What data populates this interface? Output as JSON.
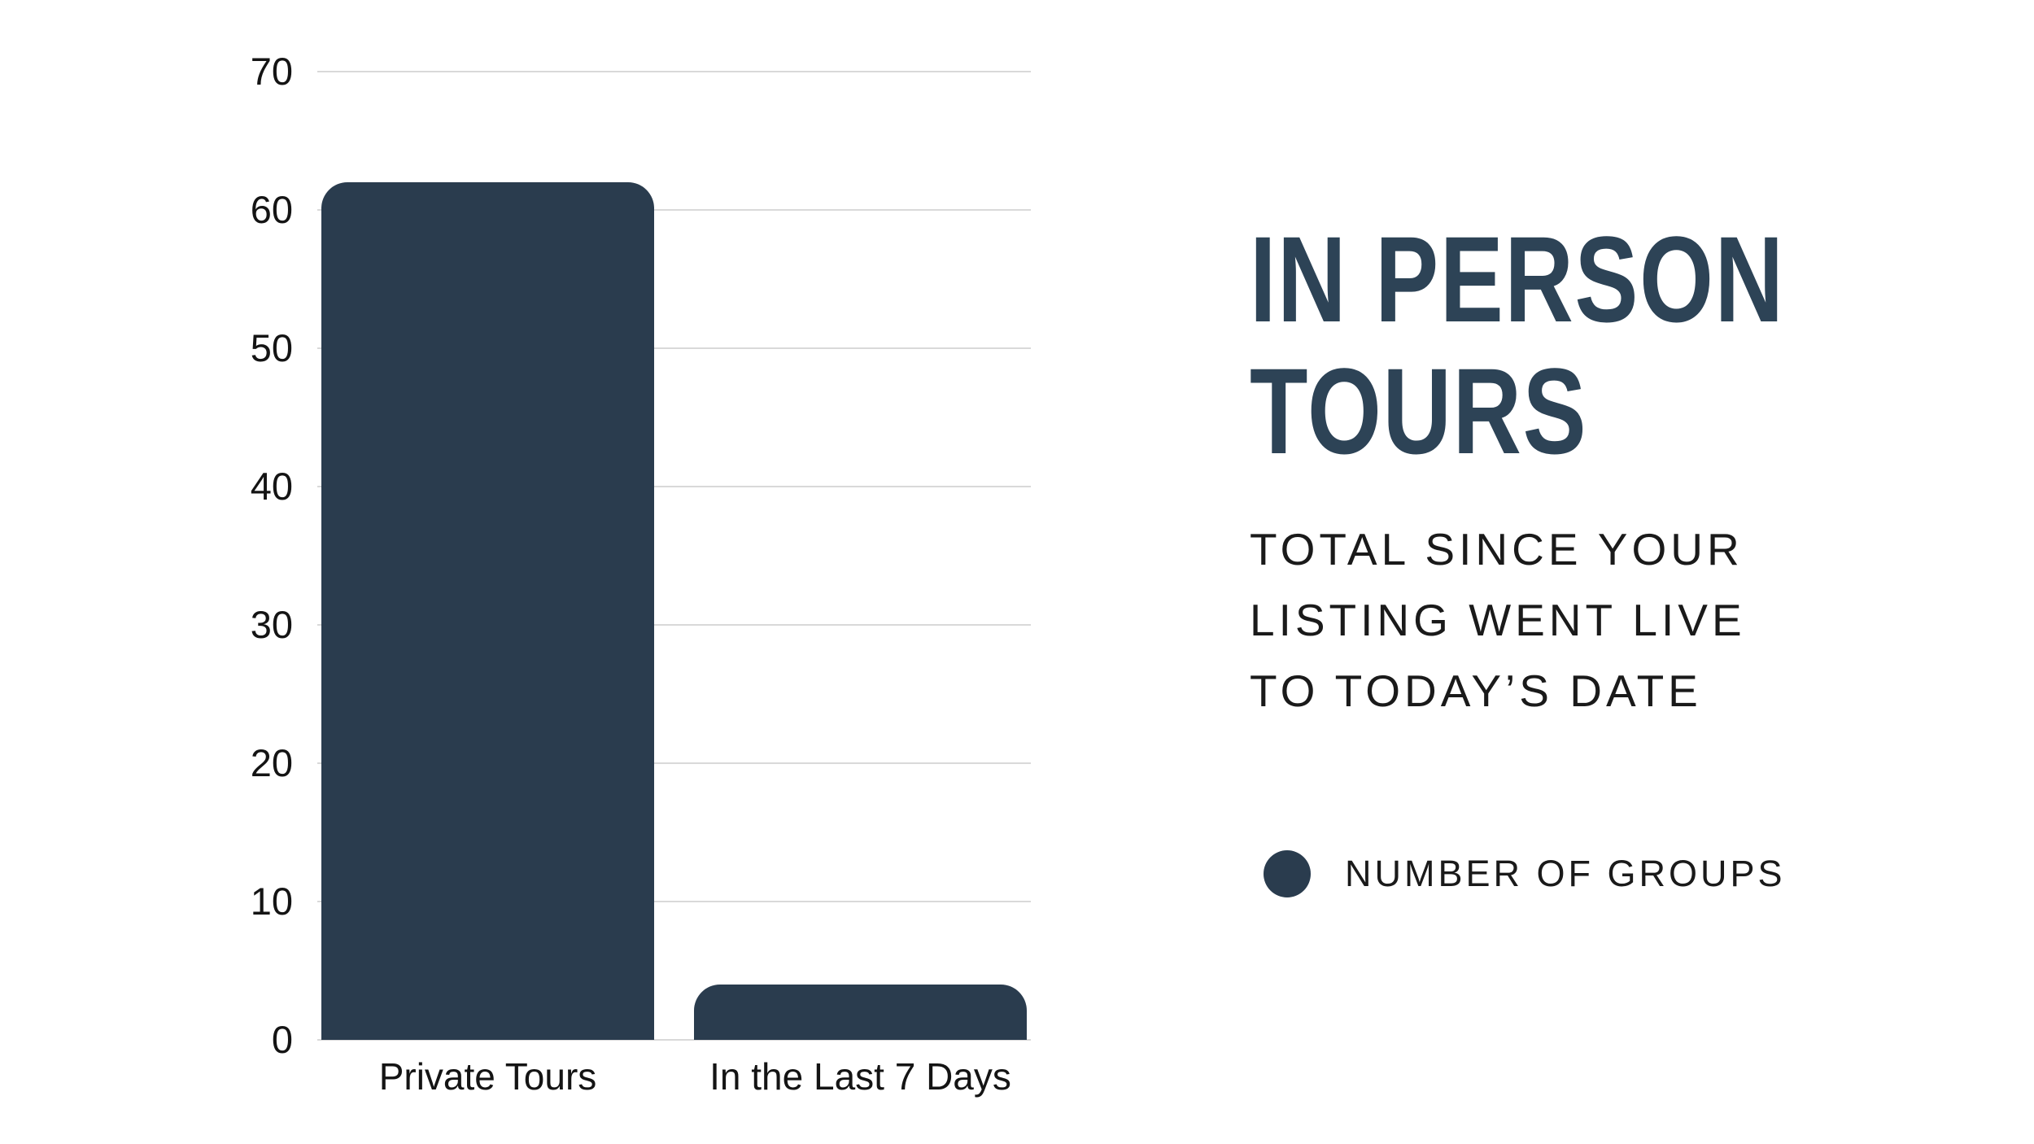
{
  "page": {
    "background": "#ffffff"
  },
  "panel": {
    "title_lines": [
      "IN PERSON",
      "TOURS"
    ],
    "title_color": "#2d4356",
    "subtitle_lines": [
      "TOTAL SINCE YOUR",
      "LISTING WENT LIVE",
      "TO TODAY’S DATE"
    ],
    "subtitle_color": "#1a1a1a",
    "legend": {
      "label": "NUMBER OF GROUPS",
      "label_color": "#1a1a1a",
      "swatch_color": "#2a3c4e"
    }
  },
  "chart_data": {
    "type": "bar",
    "title": "",
    "categories": [
      "Private Tours",
      "In the Last 7 Days"
    ],
    "values": [
      62,
      4
    ],
    "series": [
      {
        "name": "NUMBER OF GROUPS",
        "values": [
          62,
          4
        ]
      }
    ],
    "xlabel": "",
    "ylabel": "",
    "ylim": [
      0,
      70
    ],
    "yticks": [
      0,
      10,
      20,
      30,
      40,
      50,
      60,
      70
    ],
    "grid": true,
    "legend_position": "right",
    "bar_color": "#2a3c4e",
    "gridline_color": "#d9d9d9",
    "tick_label_color": "#141414"
  }
}
